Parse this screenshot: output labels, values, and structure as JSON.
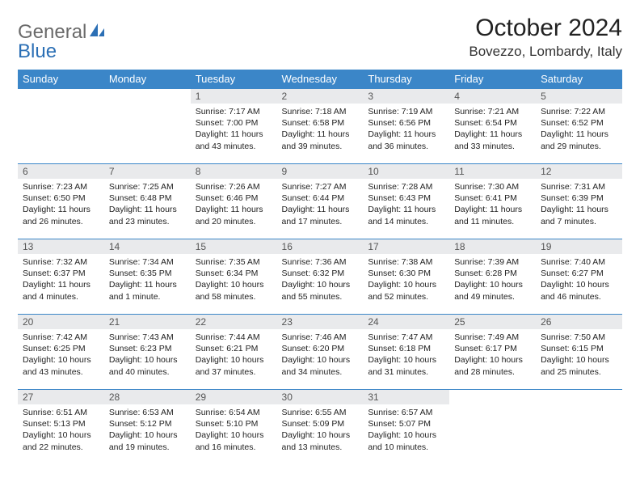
{
  "brand": {
    "word1": "General",
    "word2": "Blue"
  },
  "title": {
    "month": "October 2024",
    "location": "Bovezzo, Lombardy, Italy"
  },
  "colors": {
    "header_bg": "#3b86c8",
    "header_text": "#ffffff",
    "daynum_bg": "#e9eaec",
    "rule": "#3b86c8",
    "brand_gray": "#6a6a6a",
    "brand_blue": "#2b6fb5"
  },
  "day_headers": [
    "Sunday",
    "Monday",
    "Tuesday",
    "Wednesday",
    "Thursday",
    "Friday",
    "Saturday"
  ],
  "weeks": [
    [
      null,
      null,
      {
        "n": "1",
        "sunrise": "7:17 AM",
        "sunset": "7:00 PM",
        "daylight": "11 hours and 43 minutes."
      },
      {
        "n": "2",
        "sunrise": "7:18 AM",
        "sunset": "6:58 PM",
        "daylight": "11 hours and 39 minutes."
      },
      {
        "n": "3",
        "sunrise": "7:19 AM",
        "sunset": "6:56 PM",
        "daylight": "11 hours and 36 minutes."
      },
      {
        "n": "4",
        "sunrise": "7:21 AM",
        "sunset": "6:54 PM",
        "daylight": "11 hours and 33 minutes."
      },
      {
        "n": "5",
        "sunrise": "7:22 AM",
        "sunset": "6:52 PM",
        "daylight": "11 hours and 29 minutes."
      }
    ],
    [
      {
        "n": "6",
        "sunrise": "7:23 AM",
        "sunset": "6:50 PM",
        "daylight": "11 hours and 26 minutes."
      },
      {
        "n": "7",
        "sunrise": "7:25 AM",
        "sunset": "6:48 PM",
        "daylight": "11 hours and 23 minutes."
      },
      {
        "n": "8",
        "sunrise": "7:26 AM",
        "sunset": "6:46 PM",
        "daylight": "11 hours and 20 minutes."
      },
      {
        "n": "9",
        "sunrise": "7:27 AM",
        "sunset": "6:44 PM",
        "daylight": "11 hours and 17 minutes."
      },
      {
        "n": "10",
        "sunrise": "7:28 AM",
        "sunset": "6:43 PM",
        "daylight": "11 hours and 14 minutes."
      },
      {
        "n": "11",
        "sunrise": "7:30 AM",
        "sunset": "6:41 PM",
        "daylight": "11 hours and 11 minutes."
      },
      {
        "n": "12",
        "sunrise": "7:31 AM",
        "sunset": "6:39 PM",
        "daylight": "11 hours and 7 minutes."
      }
    ],
    [
      {
        "n": "13",
        "sunrise": "7:32 AM",
        "sunset": "6:37 PM",
        "daylight": "11 hours and 4 minutes."
      },
      {
        "n": "14",
        "sunrise": "7:34 AM",
        "sunset": "6:35 PM",
        "daylight": "11 hours and 1 minute."
      },
      {
        "n": "15",
        "sunrise": "7:35 AM",
        "sunset": "6:34 PM",
        "daylight": "10 hours and 58 minutes."
      },
      {
        "n": "16",
        "sunrise": "7:36 AM",
        "sunset": "6:32 PM",
        "daylight": "10 hours and 55 minutes."
      },
      {
        "n": "17",
        "sunrise": "7:38 AM",
        "sunset": "6:30 PM",
        "daylight": "10 hours and 52 minutes."
      },
      {
        "n": "18",
        "sunrise": "7:39 AM",
        "sunset": "6:28 PM",
        "daylight": "10 hours and 49 minutes."
      },
      {
        "n": "19",
        "sunrise": "7:40 AM",
        "sunset": "6:27 PM",
        "daylight": "10 hours and 46 minutes."
      }
    ],
    [
      {
        "n": "20",
        "sunrise": "7:42 AM",
        "sunset": "6:25 PM",
        "daylight": "10 hours and 43 minutes."
      },
      {
        "n": "21",
        "sunrise": "7:43 AM",
        "sunset": "6:23 PM",
        "daylight": "10 hours and 40 minutes."
      },
      {
        "n": "22",
        "sunrise": "7:44 AM",
        "sunset": "6:21 PM",
        "daylight": "10 hours and 37 minutes."
      },
      {
        "n": "23",
        "sunrise": "7:46 AM",
        "sunset": "6:20 PM",
        "daylight": "10 hours and 34 minutes."
      },
      {
        "n": "24",
        "sunrise": "7:47 AM",
        "sunset": "6:18 PM",
        "daylight": "10 hours and 31 minutes."
      },
      {
        "n": "25",
        "sunrise": "7:49 AM",
        "sunset": "6:17 PM",
        "daylight": "10 hours and 28 minutes."
      },
      {
        "n": "26",
        "sunrise": "7:50 AM",
        "sunset": "6:15 PM",
        "daylight": "10 hours and 25 minutes."
      }
    ],
    [
      {
        "n": "27",
        "sunrise": "6:51 AM",
        "sunset": "5:13 PM",
        "daylight": "10 hours and 22 minutes."
      },
      {
        "n": "28",
        "sunrise": "6:53 AM",
        "sunset": "5:12 PM",
        "daylight": "10 hours and 19 minutes."
      },
      {
        "n": "29",
        "sunrise": "6:54 AM",
        "sunset": "5:10 PM",
        "daylight": "10 hours and 16 minutes."
      },
      {
        "n": "30",
        "sunrise": "6:55 AM",
        "sunset": "5:09 PM",
        "daylight": "10 hours and 13 minutes."
      },
      {
        "n": "31",
        "sunrise": "6:57 AM",
        "sunset": "5:07 PM",
        "daylight": "10 hours and 10 minutes."
      },
      null,
      null
    ]
  ],
  "labels": {
    "sunrise": "Sunrise: ",
    "sunset": "Sunset: ",
    "daylight": "Daylight: "
  }
}
